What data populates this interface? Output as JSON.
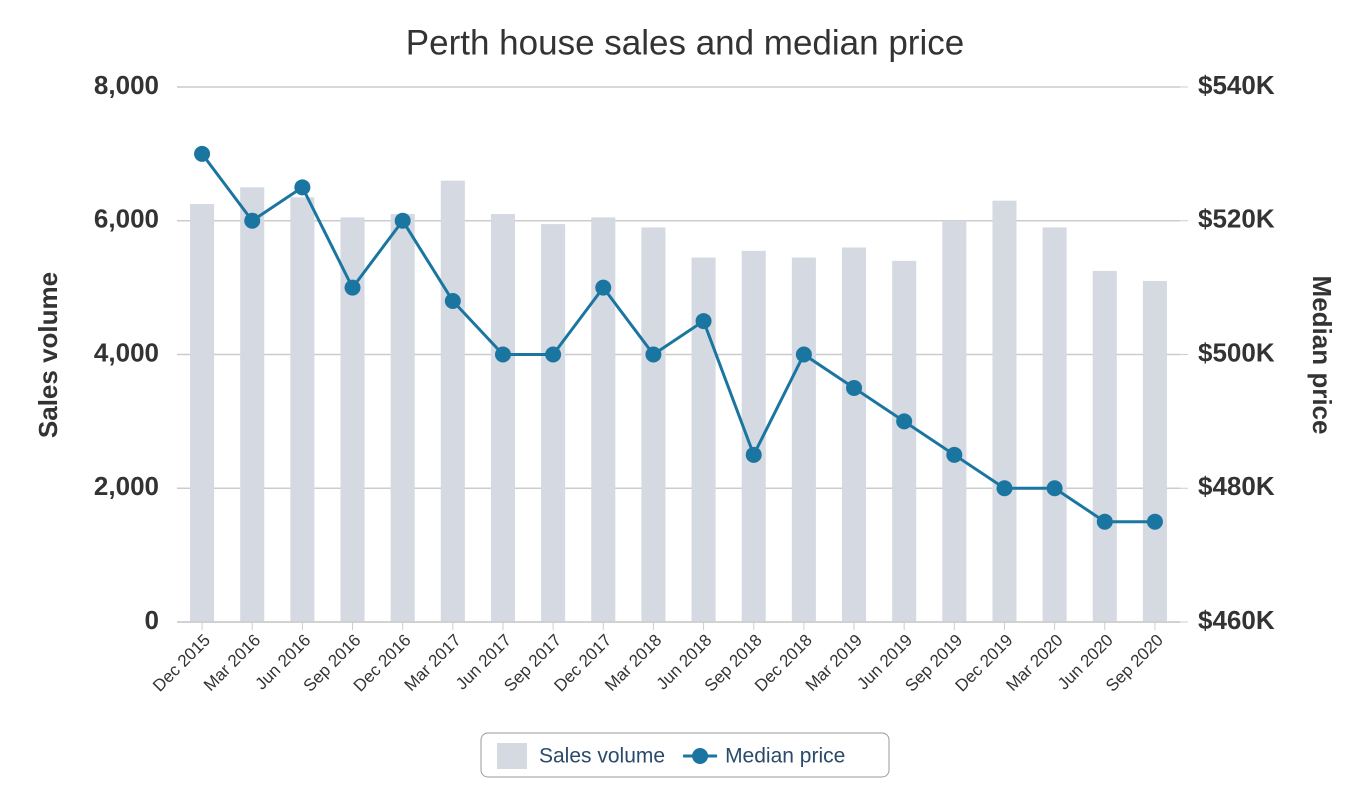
{
  "chart_data": {
    "type": "bar",
    "title": "Perth house sales and median price",
    "y_label": "Sales volume",
    "y2_label": "Median price",
    "categories": [
      "Dec 2015",
      "Mar 2016",
      "Jun 2016",
      "Sep 2016",
      "Dec 2016",
      "Mar 2017",
      "Jun 2017",
      "Sep 2017",
      "Dec 2017",
      "Mar 2018",
      "Jun 2018",
      "Sep 2018",
      "Dec 2018",
      "Mar 2019",
      "Jun 2019",
      "Sep 2019",
      "Dec 2019",
      "Mar 2020",
      "Jun 2020",
      "Sep 2020"
    ],
    "series": [
      {
        "name": "Sales volume",
        "type": "bar",
        "color": "#d5d9e1",
        "values": [
          6250,
          6500,
          6350,
          6050,
          6100,
          6600,
          6100,
          5950,
          6050,
          5900,
          5450,
          5550,
          5450,
          5600,
          5400,
          6000,
          6300,
          5900,
          5250,
          5100
        ]
      },
      {
        "name": "Median price",
        "type": "line",
        "axis": "y2",
        "color": "#1a76a0",
        "values": [
          530000,
          520000,
          525000,
          510000,
          520000,
          508000,
          500000,
          500000,
          510000,
          500000,
          505000,
          485000,
          500000,
          495000,
          490000,
          485000,
          480000,
          480000,
          475000,
          475000
        ]
      }
    ],
    "ylim": [
      0,
      8000
    ],
    "yticks": [
      0,
      {
        "value": 2000,
        "label": "2,000"
      },
      {
        "value": 4000,
        "label": "4,000"
      },
      {
        "value": 6000,
        "label": "6,000"
      },
      {
        "value": 8000,
        "label": "8,000"
      }
    ],
    "y2lim": [
      460000,
      540000
    ],
    "y2ticks": [
      {
        "value": 460000,
        "label": "$460K"
      },
      {
        "value": 480000,
        "label": "$480K"
      },
      {
        "value": 500000,
        "label": "$500K"
      },
      {
        "value": 520000,
        "label": "$520K"
      },
      {
        "value": 540000,
        "label": "$540K"
      }
    ],
    "grid": true,
    "legend": "bottom"
  }
}
